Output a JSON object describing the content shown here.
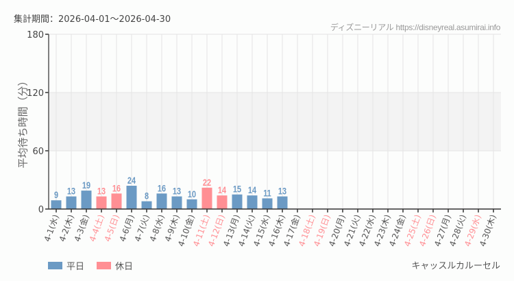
{
  "header": {
    "period": "集計期間：2026-04-01〜2026-04-30",
    "credit": "ディズニーリアル https://disneyreal.asumirai.info"
  },
  "legend": {
    "weekday_label": "平日",
    "holiday_label": "休日"
  },
  "attraction": "キャッスルカルーセル",
  "colors": {
    "weekday": "#6b9ac4",
    "holiday": "#ff8f94",
    "band": "#f3f3f3",
    "grid": "#e4e4e4",
    "axis": "#555555"
  },
  "chart_data": {
    "type": "bar",
    "title": "",
    "xlabel": "",
    "ylabel": "平均待ち時間（分）",
    "ylim": [
      0,
      180
    ],
    "yticks": [
      0,
      60,
      120,
      180
    ],
    "shaded_band": [
      60,
      120
    ],
    "grid": true,
    "legend_position": "bottom-left",
    "categories": [
      "4-1(水)",
      "4-2(木)",
      "4-3(金)",
      "4-4(土)",
      "4-5(日)",
      "4-6(月)",
      "4-7(火)",
      "4-8(水)",
      "4-9(木)",
      "4-10(金)",
      "4-11(土)",
      "4-12(日)",
      "4-13(月)",
      "4-14(火)",
      "4-15(水)",
      "4-16(木)",
      "4-17(金)",
      "4-18(土)",
      "4-19(日)",
      "4-20(月)",
      "4-21(火)",
      "4-22(水)",
      "4-23(木)",
      "4-24(金)",
      "4-25(土)",
      "4-26(日)",
      "4-27(月)",
      "4-28(火)",
      "4-29(水)",
      "4-30(木)"
    ],
    "holiday": [
      false,
      false,
      false,
      true,
      true,
      false,
      false,
      false,
      false,
      false,
      true,
      true,
      false,
      false,
      false,
      false,
      false,
      true,
      true,
      false,
      false,
      false,
      false,
      false,
      true,
      true,
      false,
      false,
      true,
      false
    ],
    "values": [
      9,
      13,
      19,
      13,
      16,
      24,
      8,
      16,
      13,
      10,
      22,
      14,
      15,
      14,
      11,
      13,
      null,
      null,
      null,
      null,
      null,
      null,
      null,
      null,
      null,
      null,
      null,
      null,
      null,
      null
    ],
    "series": [
      {
        "name": "平日",
        "values": [
          9,
          13,
          19,
          null,
          null,
          24,
          8,
          16,
          13,
          10,
          null,
          null,
          15,
          14,
          11,
          13,
          null,
          null,
          null,
          null,
          null,
          null,
          null,
          null,
          null,
          null,
          null,
          null,
          null,
          null
        ]
      },
      {
        "name": "休日",
        "values": [
          null,
          null,
          null,
          13,
          16,
          null,
          null,
          null,
          null,
          null,
          22,
          14,
          null,
          null,
          null,
          null,
          null,
          null,
          null,
          null,
          null,
          null,
          null,
          null,
          null,
          null,
          null,
          null,
          null,
          null
        ]
      }
    ]
  }
}
